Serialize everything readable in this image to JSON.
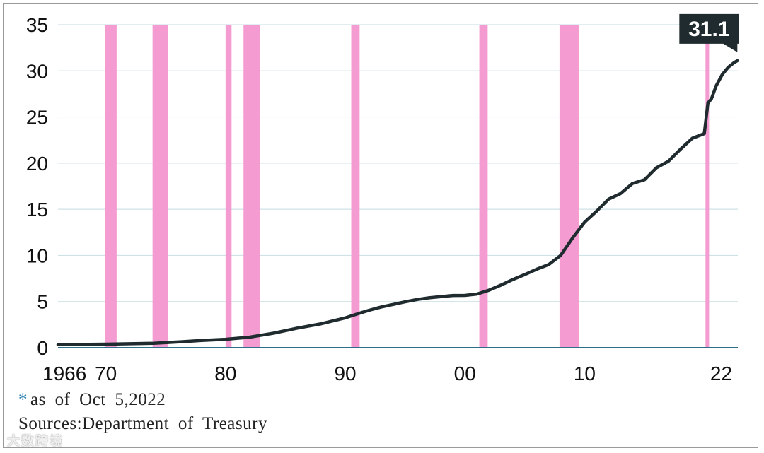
{
  "chart_data": {
    "type": "line",
    "title": "",
    "xlabel": "",
    "ylabel": "",
    "xlim": [
      1966,
      2022.8
    ],
    "ylim": [
      0,
      35
    ],
    "yticks": [
      0,
      5,
      10,
      15,
      20,
      25,
      30,
      35
    ],
    "ytick_labels": [
      "0",
      "5",
      "10",
      "15",
      "20",
      "25",
      "30",
      "35"
    ],
    "xticks": [
      1966,
      1970,
      1980,
      1990,
      2000,
      2010,
      2022
    ],
    "xtick_labels": [
      "1966",
      "70",
      "80",
      "90",
      "00",
      "10",
      "22"
    ],
    "grid": true,
    "colors": {
      "line": "#1f2b2e",
      "recession": "#f49cd2",
      "grid": "#cfe2e6",
      "axis": "#2f6f8a",
      "callout_bg": "#1f2b2e",
      "callout_text": "#ffffff"
    },
    "recessions": [
      [
        1969.9,
        1970.9
      ],
      [
        1973.9,
        1975.2
      ],
      [
        1980.0,
        1980.5
      ],
      [
        1981.5,
        1982.9
      ],
      [
        1990.5,
        1991.2
      ],
      [
        2001.2,
        2001.9
      ],
      [
        2007.9,
        2009.5
      ],
      [
        2020.1,
        2020.4
      ]
    ],
    "series": [
      {
        "x": [
          1966,
          1968,
          1970,
          1972,
          1974,
          1976,
          1978,
          1980,
          1982,
          1984,
          1986,
          1988,
          1990,
          1991,
          1992,
          1993,
          1994,
          1995,
          1996,
          1997,
          1998,
          1999,
          2000,
          2001,
          2002,
          2003,
          2004,
          2005,
          2006,
          2007,
          2008,
          2009,
          2010,
          2011,
          2012,
          2013,
          2014,
          2015,
          2016,
          2017,
          2018,
          2019,
          2020,
          2020.3,
          2020.6,
          2021,
          2021.5,
          2022,
          2022.5,
          2022.76
        ],
        "values": [
          0.32,
          0.35,
          0.38,
          0.43,
          0.48,
          0.62,
          0.78,
          0.91,
          1.14,
          1.57,
          2.12,
          2.6,
          3.23,
          3.66,
          4.06,
          4.41,
          4.69,
          4.97,
          5.22,
          5.41,
          5.53,
          5.66,
          5.67,
          5.81,
          6.23,
          6.78,
          7.38,
          7.93,
          8.51,
          9.01,
          10.0,
          11.9,
          13.6,
          14.8,
          16.1,
          16.7,
          17.8,
          18.2,
          19.5,
          20.2,
          21.5,
          22.7,
          23.2,
          26.5,
          27.0,
          28.4,
          29.6,
          30.4,
          30.9,
          31.1
        ]
      }
    ],
    "annotation": {
      "label": "31.1",
      "x": 2022.76,
      "y": 31.1
    }
  },
  "footnotes": {
    "asterisk": "*",
    "as_of": "as of Oct 5,2022",
    "sources": "Sources:Department of Treasury"
  },
  "watermark": "大数跨境"
}
